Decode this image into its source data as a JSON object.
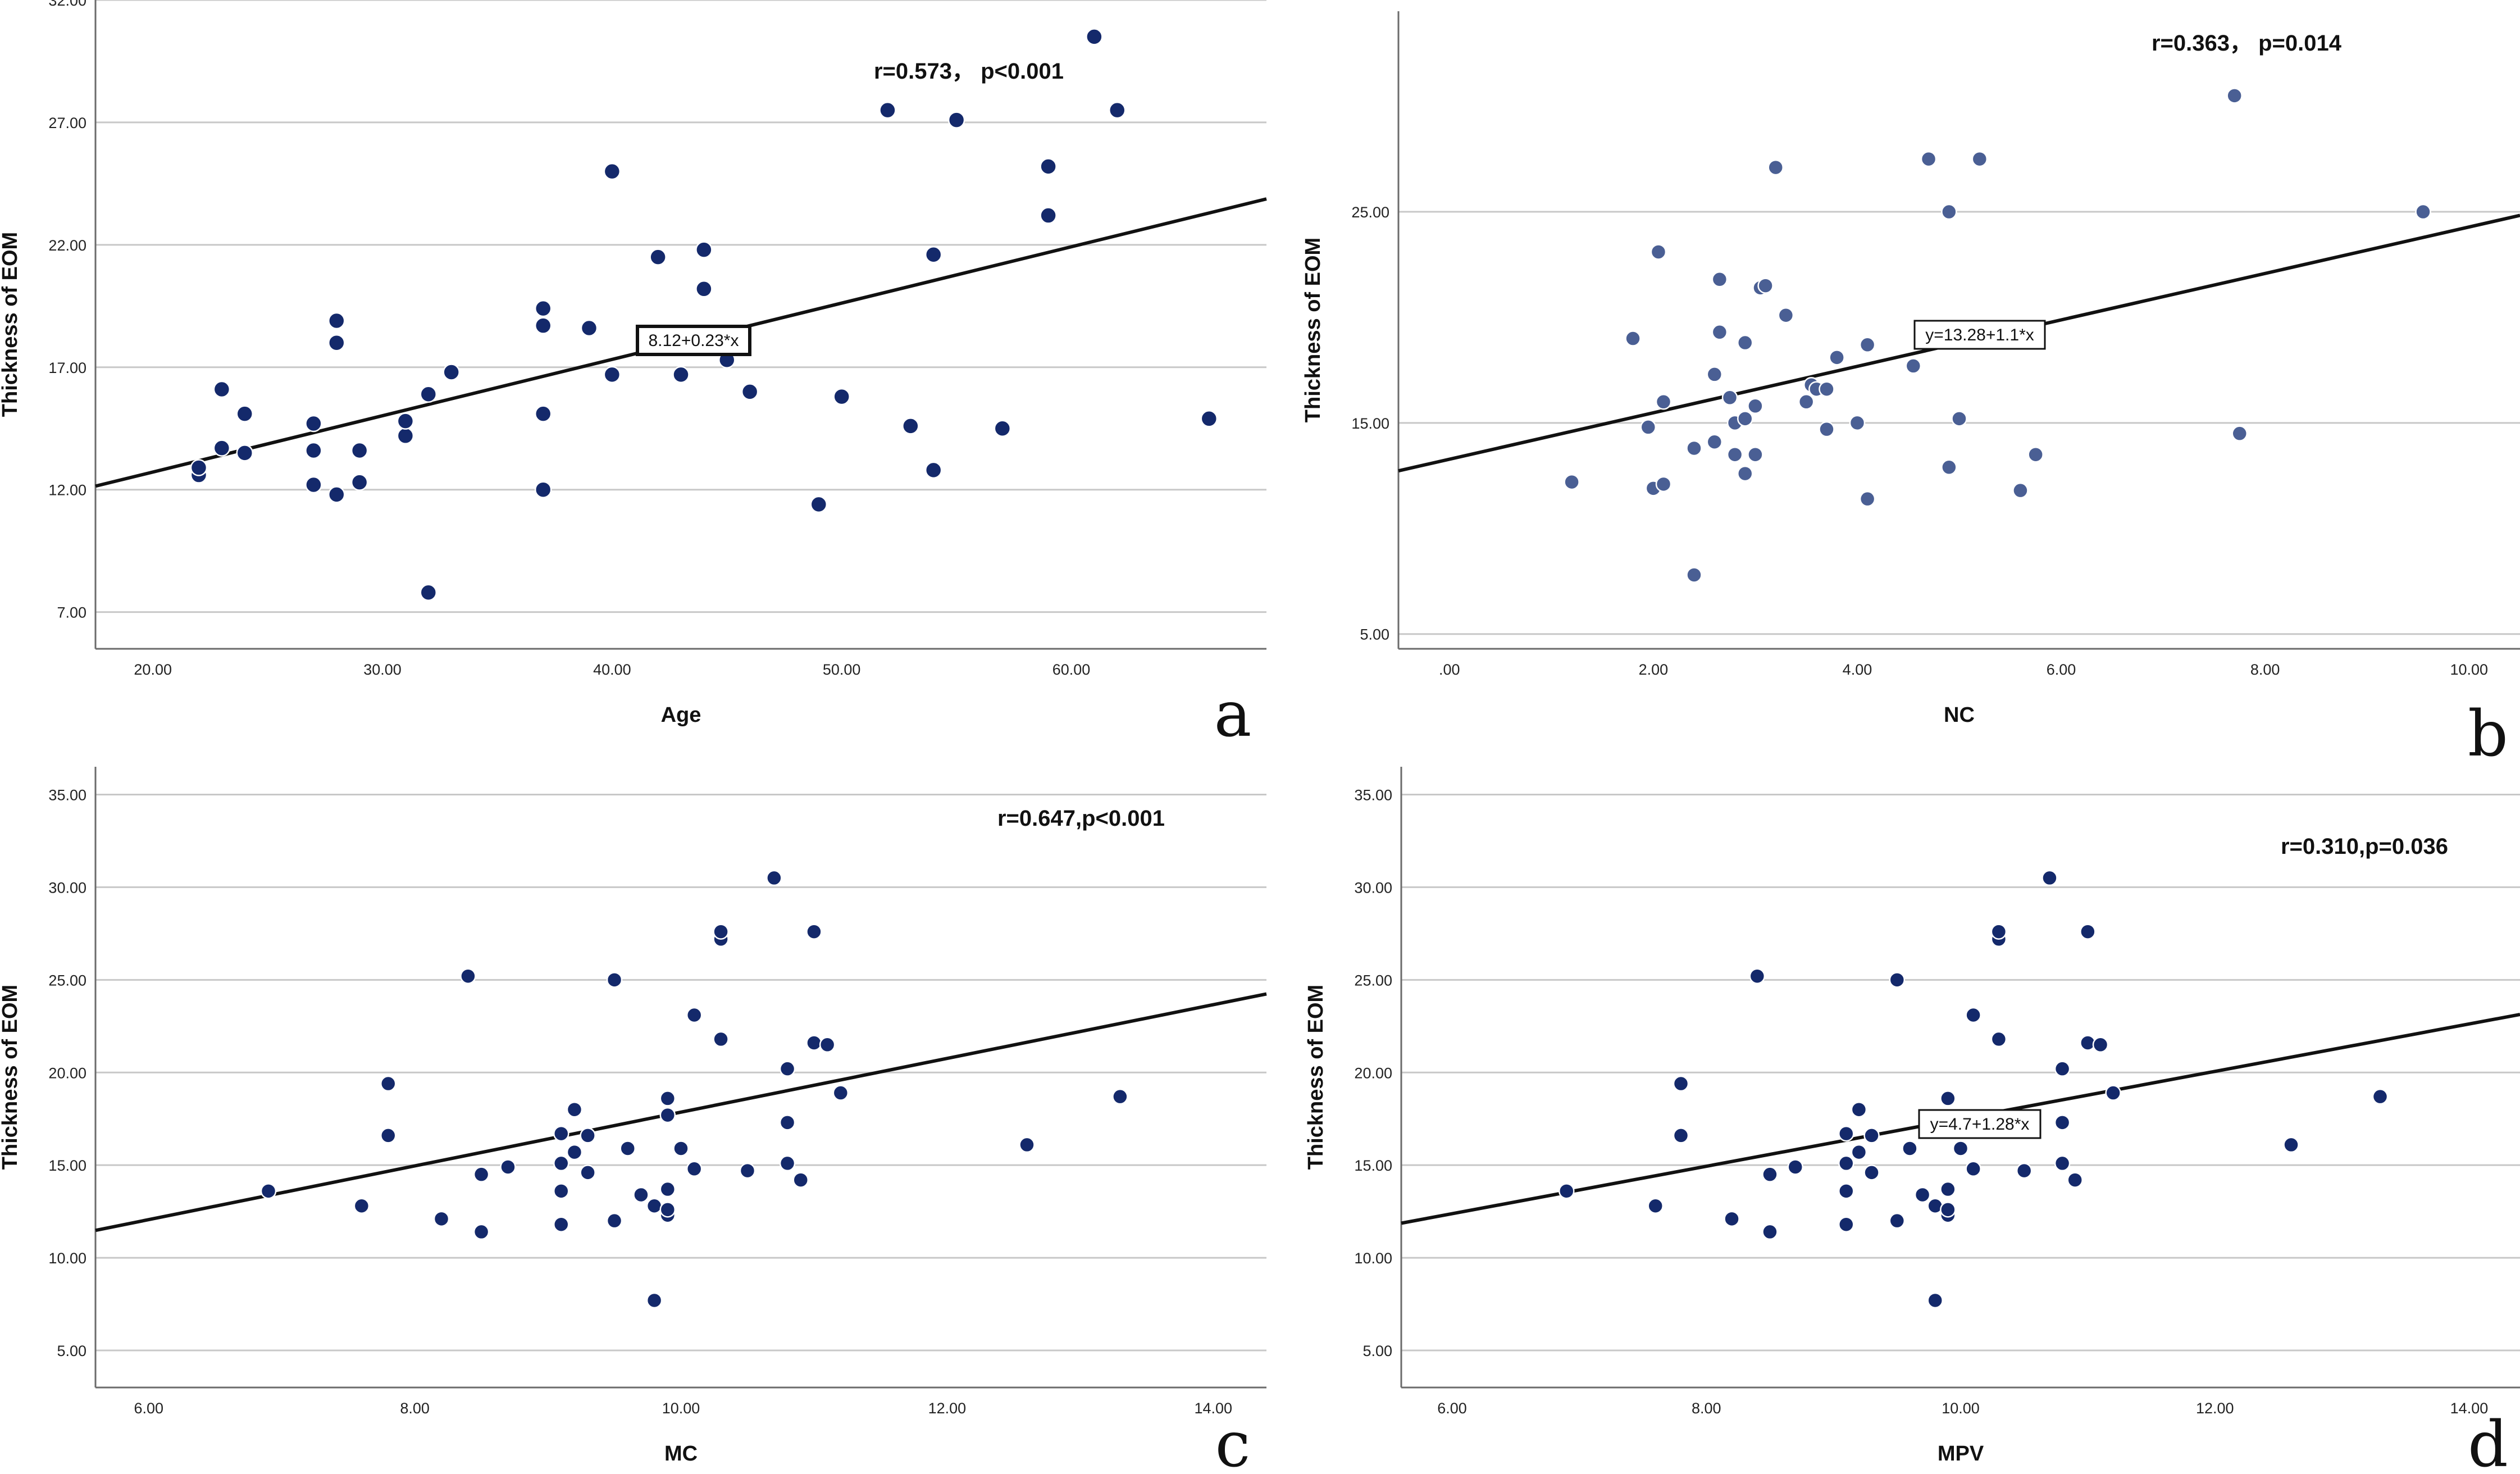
{
  "colors": {
    "point": "#14296b",
    "point_b": "#4a5f94",
    "line": "#111111",
    "grid": "#c8c8c8",
    "frame": "#6b6b6b"
  },
  "chart_data": [
    {
      "type": "scatter",
      "panel_letter": "a",
      "title": "",
      "xlabel": "Age",
      "ylabel": "Thickness of EOM",
      "annotation": "r=0.573， p<0.001",
      "equation_label": "8.12+0.23*x",
      "regression": {
        "intercept": 8.12,
        "slope": 0.23
      },
      "xlim": [
        17.5,
        68.5
      ],
      "ylim": [
        5.5,
        32.0
      ],
      "xticks": [
        20,
        30,
        40,
        50,
        60
      ],
      "xtick_labels": [
        "20.00",
        "30.00",
        "40.00",
        "50.00",
        "60.00"
      ],
      "yticks": [
        7,
        12,
        17,
        22,
        27,
        32
      ],
      "ytick_labels": [
        "7.00",
        "12.00",
        "17.00",
        "22.00",
        "27.00",
        "32.00"
      ],
      "points": [
        [
          22,
          12.6
        ],
        [
          22,
          12.9
        ],
        [
          23,
          13.7
        ],
        [
          23,
          16.1
        ],
        [
          24,
          13.5
        ],
        [
          24,
          15.1
        ],
        [
          27,
          12.2
        ],
        [
          27,
          13.6
        ],
        [
          27,
          14.7
        ],
        [
          28,
          11.8
        ],
        [
          28,
          18.0
        ],
        [
          28,
          18.9
        ],
        [
          29,
          12.3
        ],
        [
          29,
          13.6
        ],
        [
          31,
          14.2
        ],
        [
          31,
          14.8
        ],
        [
          32,
          7.8
        ],
        [
          32,
          15.9
        ],
        [
          33,
          16.8
        ],
        [
          37,
          12.0
        ],
        [
          37,
          15.1
        ],
        [
          37,
          18.7
        ],
        [
          37,
          19.4
        ],
        [
          39,
          18.6
        ],
        [
          40,
          16.7
        ],
        [
          40,
          25.0
        ],
        [
          42,
          21.5
        ],
        [
          43,
          16.7
        ],
        [
          44,
          20.2
        ],
        [
          44,
          21.8
        ],
        [
          45,
          17.3
        ],
        [
          46,
          16.0
        ],
        [
          49,
          11.4
        ],
        [
          50,
          15.8
        ],
        [
          52,
          27.5
        ],
        [
          53,
          14.6
        ],
        [
          54,
          12.8
        ],
        [
          54,
          21.6
        ],
        [
          55,
          27.1
        ],
        [
          57,
          14.5
        ],
        [
          59,
          23.2
        ],
        [
          59,
          25.2
        ],
        [
          61,
          30.5
        ],
        [
          62,
          27.5
        ],
        [
          66,
          14.9
        ]
      ]
    },
    {
      "type": "scatter",
      "panel_letter": "b",
      "title": "",
      "xlabel": "NC",
      "ylabel": "Thickness of EOM",
      "annotation": "r=0.363， p=0.014",
      "equation_label": "y=13.28+1.1*x",
      "regression": {
        "intercept": 13.28,
        "slope": 1.1
      },
      "xlim": [
        -0.5,
        10.5
      ],
      "ylim": [
        4.3,
        34.5
      ],
      "xticks": [
        0,
        2,
        4,
        6,
        8,
        10
      ],
      "xtick_labels": [
        ".00",
        "2.00",
        "4.00",
        "6.00",
        "8.00",
        "10.00"
      ],
      "yticks": [
        5,
        15,
        25
      ],
      "ytick_labels": [
        "5.00",
        "15.00",
        "25.00"
      ],
      "points": [
        [
          1.2,
          12.2
        ],
        [
          1.8,
          19.0
        ],
        [
          1.95,
          14.8
        ],
        [
          2.0,
          11.9
        ],
        [
          2.05,
          23.1
        ],
        [
          2.1,
          12.1
        ],
        [
          2.1,
          16.0
        ],
        [
          2.4,
          7.8
        ],
        [
          2.4,
          13.8
        ],
        [
          2.6,
          14.1
        ],
        [
          2.6,
          17.3
        ],
        [
          2.65,
          19.3
        ],
        [
          2.65,
          21.8
        ],
        [
          2.75,
          16.2
        ],
        [
          2.8,
          13.5
        ],
        [
          2.8,
          15.0
        ],
        [
          2.9,
          12.6
        ],
        [
          2.9,
          15.2
        ],
        [
          2.9,
          18.8
        ],
        [
          3.0,
          13.5
        ],
        [
          3.0,
          15.8
        ],
        [
          3.05,
          21.4
        ],
        [
          3.1,
          21.5
        ],
        [
          3.2,
          27.1
        ],
        [
          3.3,
          20.1
        ],
        [
          3.5,
          16.0
        ],
        [
          3.55,
          16.8
        ],
        [
          3.6,
          16.6
        ],
        [
          3.7,
          14.7
        ],
        [
          3.7,
          16.6
        ],
        [
          3.8,
          18.1
        ],
        [
          4.0,
          15.0
        ],
        [
          4.1,
          11.4
        ],
        [
          4.1,
          18.7
        ],
        [
          4.55,
          17.7
        ],
        [
          4.7,
          27.5
        ],
        [
          4.9,
          12.9
        ],
        [
          4.9,
          25.0
        ],
        [
          5.0,
          15.2
        ],
        [
          5.2,
          27.5
        ],
        [
          5.6,
          11.8
        ],
        [
          5.75,
          13.5
        ],
        [
          7.7,
          30.5
        ],
        [
          7.75,
          14.5
        ],
        [
          9.55,
          25.0
        ]
      ]
    },
    {
      "type": "scatter",
      "panel_letter": "c",
      "title": "",
      "xlabel": "MC",
      "ylabel": "Thickness of EOM",
      "annotation": "r=0.647,p<0.001",
      "equation_label": "",
      "regression": {
        "intercept": 3.36,
        "slope": 1.45
      },
      "xlim": [
        5.6,
        14.4
      ],
      "ylim": [
        3.0,
        36.5
      ],
      "xticks": [
        6,
        8,
        10,
        12,
        14
      ],
      "xtick_labels": [
        "6.00",
        "8.00",
        "10.00",
        "12.00",
        "14.00"
      ],
      "yticks": [
        5,
        10,
        15,
        20,
        25,
        30,
        35
      ],
      "ytick_labels": [
        "5.00",
        "10.00",
        "15.00",
        "20.00",
        "25.00",
        "30.00",
        "35.00"
      ],
      "points": [
        [
          6.9,
          13.6
        ],
        [
          7.6,
          12.8
        ],
        [
          7.8,
          16.6
        ],
        [
          7.8,
          19.4
        ],
        [
          8.2,
          12.1
        ],
        [
          8.4,
          25.2
        ],
        [
          8.5,
          11.4
        ],
        [
          8.5,
          14.5
        ],
        [
          8.7,
          14.9
        ],
        [
          9.1,
          11.8
        ],
        [
          9.1,
          13.6
        ],
        [
          9.1,
          15.1
        ],
        [
          9.1,
          16.7
        ],
        [
          9.2,
          15.7
        ],
        [
          9.2,
          18.0
        ],
        [
          9.3,
          14.6
        ],
        [
          9.3,
          16.6
        ],
        [
          9.5,
          12.0
        ],
        [
          9.5,
          25.0
        ],
        [
          9.6,
          15.9
        ],
        [
          9.7,
          13.4
        ],
        [
          9.8,
          7.7
        ],
        [
          9.8,
          12.8
        ],
        [
          9.9,
          12.3
        ],
        [
          9.9,
          12.6
        ],
        [
          9.9,
          13.7
        ],
        [
          9.9,
          17.7
        ],
        [
          9.9,
          18.6
        ],
        [
          10.0,
          15.9
        ],
        [
          10.1,
          14.8
        ],
        [
          10.1,
          23.1
        ],
        [
          10.3,
          21.8
        ],
        [
          10.3,
          27.2
        ],
        [
          10.3,
          27.6
        ],
        [
          10.5,
          14.7
        ],
        [
          10.7,
          30.5
        ],
        [
          10.8,
          15.1
        ],
        [
          10.8,
          17.3
        ],
        [
          10.8,
          20.2
        ],
        [
          10.9,
          14.2
        ],
        [
          11.0,
          21.6
        ],
        [
          11.0,
          27.6
        ],
        [
          11.1,
          21.5
        ],
        [
          11.2,
          18.9
        ],
        [
          12.6,
          16.1
        ],
        [
          13.3,
          18.7
        ]
      ]
    },
    {
      "type": "scatter",
      "panel_letter": "d",
      "title": "",
      "xlabel": "MPV",
      "ylabel": "Thickness of EOM",
      "annotation": "r=0.310,p=0.036",
      "equation_label": "y=4.7+1.28*x",
      "regression": {
        "intercept": 4.7,
        "slope": 1.28
      },
      "xlim": [
        5.6,
        14.4
      ],
      "ylim": [
        3.0,
        36.5
      ],
      "xticks": [
        6,
        8,
        10,
        12,
        14
      ],
      "xtick_labels": [
        "6.00",
        "8.00",
        "10.00",
        "12.00",
        "14.00"
      ],
      "yticks": [
        5,
        10,
        15,
        20,
        25,
        30,
        35
      ],
      "ytick_labels": [
        "5.00",
        "10.00",
        "15.00",
        "20.00",
        "25.00",
        "30.00",
        "35.00"
      ],
      "points": [
        [
          6.9,
          13.6
        ],
        [
          7.6,
          12.8
        ],
        [
          7.8,
          16.6
        ],
        [
          7.8,
          19.4
        ],
        [
          8.2,
          12.1
        ],
        [
          8.4,
          25.2
        ],
        [
          8.5,
          11.4
        ],
        [
          8.5,
          14.5
        ],
        [
          8.7,
          14.9
        ],
        [
          9.1,
          11.8
        ],
        [
          9.1,
          13.6
        ],
        [
          9.1,
          15.1
        ],
        [
          9.1,
          16.7
        ],
        [
          9.2,
          15.7
        ],
        [
          9.2,
          18.0
        ],
        [
          9.3,
          14.6
        ],
        [
          9.3,
          16.6
        ],
        [
          9.5,
          12.0
        ],
        [
          9.5,
          25.0
        ],
        [
          9.6,
          15.9
        ],
        [
          9.7,
          13.4
        ],
        [
          9.8,
          7.7
        ],
        [
          9.8,
          12.8
        ],
        [
          9.9,
          12.3
        ],
        [
          9.9,
          12.6
        ],
        [
          9.9,
          13.7
        ],
        [
          9.9,
          18.6
        ],
        [
          10.0,
          15.9
        ],
        [
          10.1,
          14.8
        ],
        [
          10.1,
          23.1
        ],
        [
          10.3,
          21.8
        ],
        [
          10.3,
          27.2
        ],
        [
          10.3,
          27.6
        ],
        [
          10.5,
          14.7
        ],
        [
          10.7,
          30.5
        ],
        [
          10.8,
          15.1
        ],
        [
          10.8,
          17.3
        ],
        [
          10.8,
          20.2
        ],
        [
          10.9,
          14.2
        ],
        [
          11.0,
          21.6
        ],
        [
          11.0,
          27.6
        ],
        [
          11.1,
          21.5
        ],
        [
          11.2,
          18.9
        ],
        [
          12.6,
          16.1
        ],
        [
          13.3,
          18.7
        ]
      ]
    }
  ]
}
